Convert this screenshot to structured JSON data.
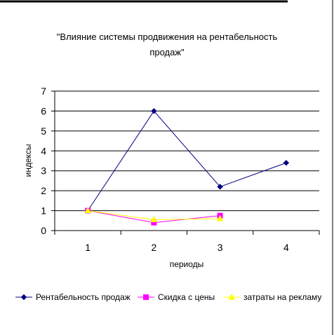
{
  "chart_data": {
    "type": "line",
    "title_line1": "\"Влияние системы продвижения на рентабельность",
    "title_line2": "продаж\"",
    "xlabel": "периоды",
    "ylabel": "индексы",
    "categories": [
      "1",
      "2",
      "3",
      "4"
    ],
    "ylim": [
      0,
      7
    ],
    "yticks": [
      0,
      1,
      2,
      3,
      4,
      5,
      6,
      7
    ],
    "grid": true,
    "legend_position": "bottom",
    "series": [
      {
        "name": "Рентабельность продаж",
        "values": [
          1.0,
          6.0,
          2.2,
          3.4
        ],
        "color": "#000080",
        "marker": "diamond"
      },
      {
        "name": "Скидка с цены",
        "values": [
          1.0,
          0.4,
          0.75,
          null
        ],
        "color": "#FF00FF",
        "marker": "square"
      },
      {
        "name": "затраты на рекламу",
        "values": [
          1.0,
          0.55,
          0.6,
          null
        ],
        "color": "#FFFF00",
        "marker": "triangle"
      }
    ]
  }
}
